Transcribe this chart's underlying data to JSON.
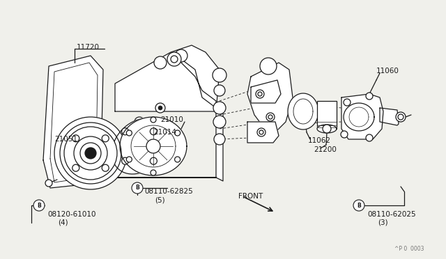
{
  "bg_color": "#f0f0eb",
  "line_color": "#1a1a1a",
  "watermark": "^P 0  0003",
  "figsize": [
    6.4,
    3.72
  ],
  "dpi": 100,
  "xlim": [
    0,
    640
  ],
  "ylim": [
    0,
    372
  ]
}
